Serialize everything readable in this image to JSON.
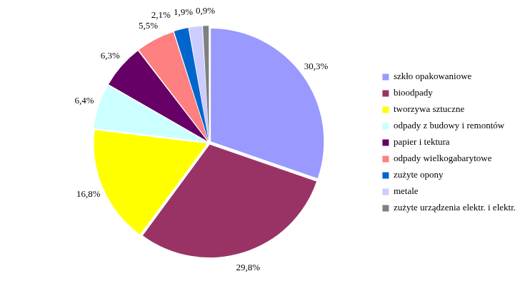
{
  "chart_data": {
    "type": "pie",
    "categories": [
      "szkło opakowaniowe",
      "bioodpady",
      "tworzywa sztuczne",
      "odpady z budowy i remontów",
      "papier i tektura",
      "odpady wielkogabarytowe",
      "zużyte opony",
      "metale",
      "zużyte urządzenia elektr. i elektr."
    ],
    "values": [
      30.3,
      29.8,
      16.8,
      6.4,
      6.3,
      5.5,
      2.1,
      1.9,
      0.9
    ],
    "value_labels": [
      "30,3%",
      "29,8%",
      "16,8%",
      "6,4%",
      "6,3%",
      "5,5%",
      "2,1%",
      "1,9%",
      "0,9%"
    ],
    "colors": [
      "#9999ff",
      "#993366",
      "#ffff00",
      "#ccffff",
      "#660066",
      "#ff8080",
      "#0066cc",
      "#ccccff",
      "#808080"
    ],
    "legend": "right",
    "data_labels": true
  }
}
